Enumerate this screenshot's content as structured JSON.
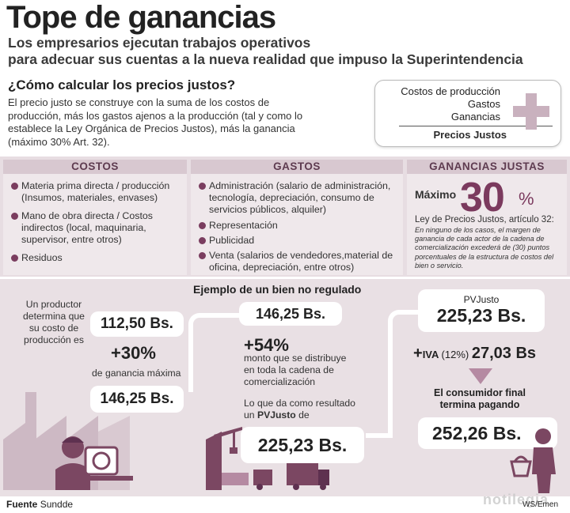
{
  "header": {
    "title": "Tope de ganancias",
    "subtitle_line1": "Los empresarios ejecutan trabajos operativos",
    "subtitle_line2": "para adecuar sus cuentas a la nueva realidad que impuso la Superintendencia"
  },
  "intro": {
    "question": "¿Cómo calcular los precios justos?",
    "text": "El precio justo se construye con la suma de los costos de producción, más los gastos ajenos a la producción (tal y como lo establece la Ley Orgánica de Precios Justos), más la ganancia (máximo 30% Art. 32)."
  },
  "formula": {
    "line1": "Costos de producción",
    "line2": "Gastos",
    "line3": "Ganancias",
    "total": "Precios Justos"
  },
  "columns": {
    "costos": {
      "header": "COSTOS",
      "items": [
        "Materia prima directa / producción (Insumos, materiales, envases)",
        "Mano de obra directa / Costos indirectos (local, maquinaria, supervisor, entre otros)",
        "Residuos"
      ]
    },
    "gastos": {
      "header": "GASTOS",
      "items": [
        "Administración (salario de administración, tecnología, depreciación, consumo de servicios públicos, alquiler)",
        "Representación",
        "Publicidad",
        "Venta (salarios de vendedores,material de oficina, depreciación, entre otros)"
      ]
    },
    "ganancias": {
      "header": "GANANCIAS JUSTAS",
      "max_label": "Máximo",
      "max_value": "30",
      "percent_sign": "%",
      "law": "Ley de Precios Justos, artículo 32:",
      "law_text": "En ninguno de los casos, el margen de ganancia de cada actor de la cadena de comercialización excederá de (30) puntos porcentuales de la estructura de costos del bien o servicio."
    }
  },
  "example": {
    "title": "Ejemplo de un bien no regulado",
    "producer_text": "Un productor determina que su costo de producción es",
    "cost": "112,50 Bs.",
    "plus30": "+30%",
    "plus30_label": "de ganancia máxima",
    "after30": "146,25 Bs.",
    "mid_value": "146,25 Bs.",
    "plus54": "+54%",
    "plus54_text": "monto que se distribuye en toda la cadena de comercialización",
    "result_text": "Lo que da como resultado un",
    "result_bold": "PVJusto",
    "result_suffix": "de",
    "pvj_value": "225,23 Bs.",
    "pvj_label": "PVJusto",
    "pvj_top_value": "225,23 Bs.",
    "iva_label": "IVA",
    "iva_pct": "(12%)",
    "iva_value": "27,03 Bs",
    "consumer_text": "El consumidor final termina pagando",
    "final_value": "252,26 Bs."
  },
  "footer": {
    "source_label": "Fuente",
    "source_name": "Sundde",
    "credit": "WS/Emen",
    "watermark": "notilegia"
  },
  "colors": {
    "accent": "#7b3a5e",
    "band": "#e7dde2",
    "header_band": "#d8c8d0"
  }
}
